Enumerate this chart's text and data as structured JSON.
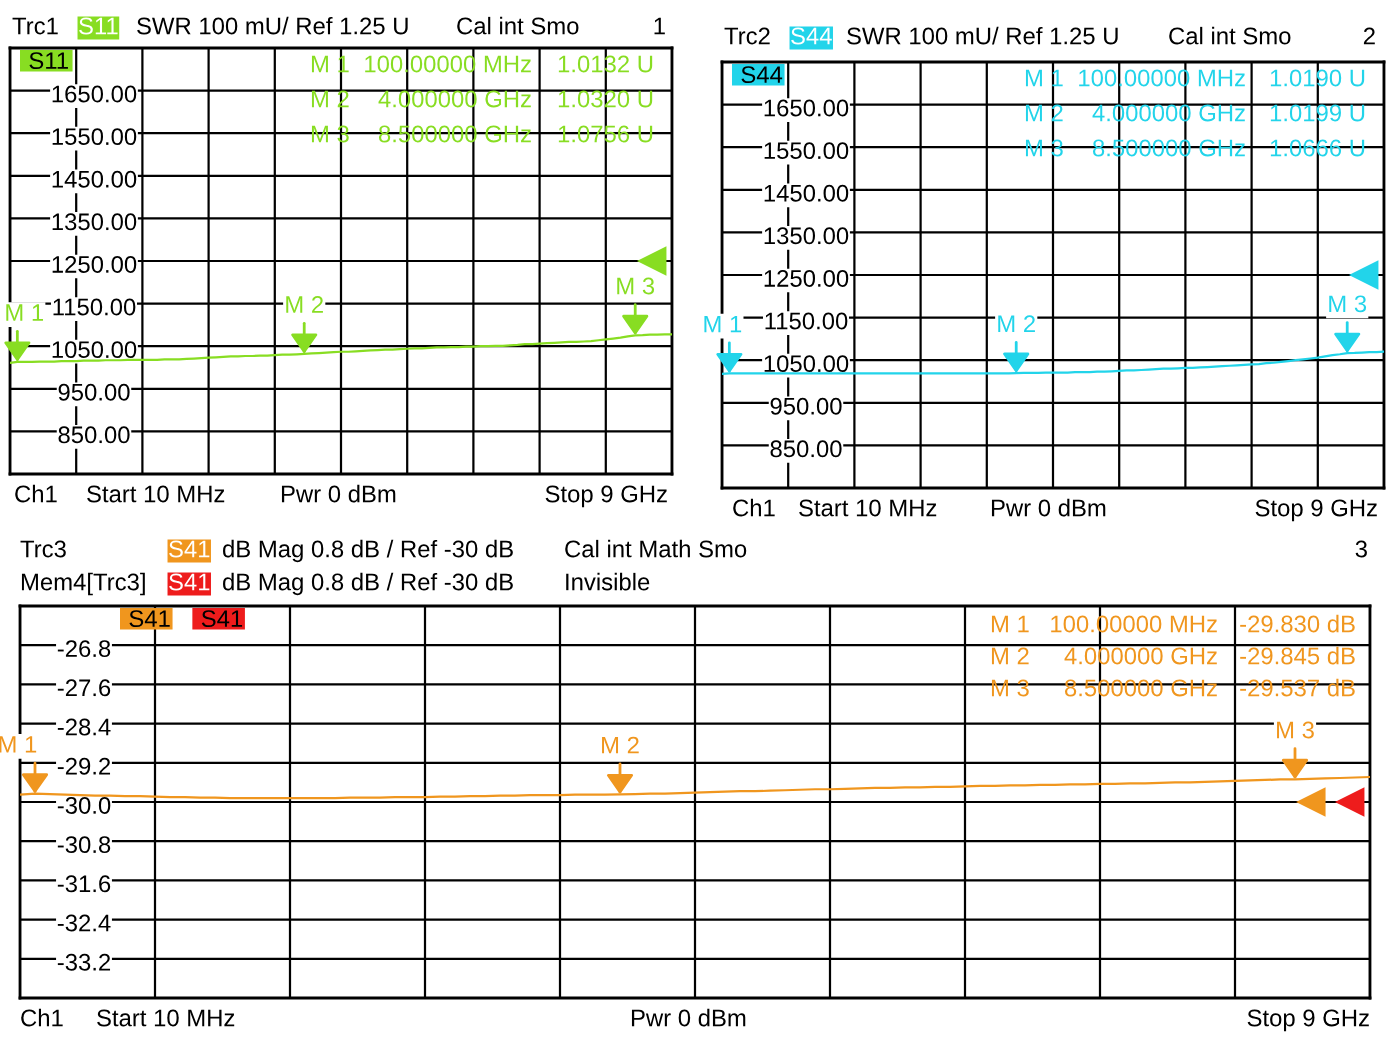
{
  "chart_data": [
    {
      "type": "line",
      "categories": [
        null,
        null,
        null,
        null,
        null,
        null,
        null,
        null,
        null,
        null,
        null,
        null,
        null,
        null,
        null,
        null,
        null,
        null,
        null,
        null,
        null,
        null,
        null,
        null,
        null,
        null,
        null,
        null,
        null,
        null,
        null,
        null,
        null,
        null,
        null,
        null,
        null,
        null,
        null,
        null,
        null,
        null,
        null,
        null,
        null,
        null,
        null,
        null,
        null,
        null,
        null,
        null,
        null,
        null,
        null,
        null,
        null,
        null,
        null,
        null,
        null,
        null,
        null,
        null,
        null,
        null,
        null,
        null,
        null,
        null,
        null,
        null,
        null,
        null,
        null,
        null,
        null,
        null,
        null,
        null,
        null,
        null,
        null,
        null,
        null,
        null,
        null,
        null,
        null,
        null,
        null
      ],
      "series": [
        {
          "name": "S11",
          "color": "#88dd22",
          "values": [
            1011,
            1013.2,
            1013,
            1013,
            1014,
            1014,
            1014,
            1015,
            1015,
            1015,
            1016,
            1016,
            1016,
            1017,
            1017,
            1017,
            1018,
            1018,
            1018,
            1018,
            1018,
            1019,
            1019,
            1019,
            1020,
            1021,
            1022,
            1023,
            1024,
            1025,
            1026,
            1026,
            1027,
            1027,
            1028,
            1028,
            1029,
            1030,
            1030,
            1031,
            1032.0,
            1033,
            1034,
            1035,
            1036,
            1037,
            1037,
            1038,
            1039,
            1040,
            1041,
            1042,
            1042,
            1043,
            1044,
            1045,
            1045,
            1046,
            1047,
            1047,
            1048,
            1048,
            1049,
            1049,
            1050,
            1050,
            1051,
            1051,
            1052,
            1053,
            1055,
            1055,
            1056,
            1057,
            1058,
            1059,
            1060,
            1060,
            1061,
            1062,
            1064,
            1066,
            1068,
            1070,
            1073,
            1075.6,
            1076,
            1077,
            1077,
            1078,
            1078
          ],
          "value_labels": [
            null,
            "M 1",
            null,
            null,
            null,
            null,
            null,
            null,
            null,
            null,
            null,
            null,
            null,
            null,
            null,
            null,
            null,
            null,
            null,
            null,
            null,
            null,
            null,
            null,
            null,
            null,
            null,
            null,
            null,
            null,
            null,
            null,
            null,
            null,
            null,
            null,
            null,
            null,
            null,
            null,
            "M 2",
            null,
            null,
            null,
            null,
            null,
            null,
            null,
            null,
            null,
            null,
            null,
            null,
            null,
            null,
            null,
            null,
            null,
            null,
            null,
            null,
            null,
            null,
            null,
            null,
            null,
            null,
            null,
            null,
            null,
            null,
            null,
            null,
            null,
            null,
            null,
            null,
            null,
            null,
            null,
            null,
            null,
            null,
            null,
            null,
            "M 3",
            null,
            null,
            null,
            null,
            null
          ]
        }
      ],
      "ylim": [
        750,
        1750
      ],
      "yticks": [
        {
          "value": 850,
          "label": "850.00"
        },
        {
          "value": 950,
          "label": "950.00"
        },
        {
          "value": 1050,
          "label": "1050.00"
        },
        {
          "value": 1150,
          "label": "1150.00"
        },
        {
          "value": 1250,
          "label": "1250.00"
        },
        {
          "value": 1350,
          "label": "1350.00"
        },
        {
          "value": 1450,
          "label": "1450.00"
        },
        {
          "value": 1550,
          "label": "1550.00"
        },
        {
          "value": 1650,
          "label": "1650.00"
        }
      ],
      "tick_labels": "y",
      "grid": true,
      "legend": "top left",
      "annotations": [
        "Trc1",
        "SWR 100 mU/ Ref 1.25 U",
        "Cal int Smo",
        "1",
        "M 1  100.00000 MHz  1.0132 U",
        "M 2  4.000000 GHz  1.0320 U",
        "M 3  8.500000 GHz  1.0756 U",
        "Ch1",
        "Start 10 MHz",
        "Pwr 0 dBm",
        "Stop 9 GHz"
      ]
    },
    {
      "type": "line",
      "categories": [
        null,
        null,
        null,
        null,
        null,
        null,
        null,
        null,
        null,
        null,
        null,
        null,
        null,
        null,
        null,
        null,
        null,
        null,
        null,
        null,
        null,
        null,
        null,
        null,
        null,
        null,
        null,
        null,
        null,
        null,
        null,
        null,
        null,
        null,
        null,
        null,
        null,
        null,
        null,
        null,
        null,
        null,
        null,
        null,
        null,
        null,
        null,
        null,
        null,
        null,
        null,
        null,
        null,
        null,
        null,
        null,
        null,
        null,
        null,
        null,
        null,
        null,
        null,
        null,
        null,
        null,
        null,
        null,
        null,
        null,
        null,
        null,
        null,
        null,
        null,
        null,
        null,
        null,
        null,
        null,
        null,
        null,
        null,
        null,
        null,
        null,
        null,
        null,
        null,
        null,
        null
      ],
      "series": [
        {
          "name": "S44",
          "color": "#22d4ea",
          "values": [
            1018,
            1019.0,
            1019,
            1019,
            1019,
            1019,
            1019,
            1019,
            1019,
            1019,
            1019,
            1019,
            1019,
            1019,
            1019,
            1019,
            1019,
            1019,
            1019,
            1019,
            1019,
            1019,
            1019,
            1019,
            1019,
            1019,
            1019,
            1019,
            1019,
            1019,
            1019,
            1019,
            1019,
            1019,
            1019,
            1019,
            1019,
            1019,
            1019,
            1019,
            1019.9,
            1020,
            1020,
            1020,
            1021,
            1021,
            1021,
            1021,
            1022,
            1022,
            1022,
            1023,
            1023,
            1024,
            1025,
            1026,
            1026,
            1027,
            1028,
            1029,
            1030,
            1030,
            1031,
            1032,
            1032,
            1033,
            1034,
            1035,
            1036,
            1037,
            1038,
            1039,
            1040,
            1041,
            1043,
            1044,
            1046,
            1048,
            1050,
            1052,
            1054,
            1056,
            1059,
            1062,
            1064,
            1066.6,
            1067,
            1068,
            1069,
            1069,
            1070
          ],
          "value_labels": [
            null,
            "M 1",
            null,
            null,
            null,
            null,
            null,
            null,
            null,
            null,
            null,
            null,
            null,
            null,
            null,
            null,
            null,
            null,
            null,
            null,
            null,
            null,
            null,
            null,
            null,
            null,
            null,
            null,
            null,
            null,
            null,
            null,
            null,
            null,
            null,
            null,
            null,
            null,
            null,
            null,
            "M 2",
            null,
            null,
            null,
            null,
            null,
            null,
            null,
            null,
            null,
            null,
            null,
            null,
            null,
            null,
            null,
            null,
            null,
            null,
            null,
            null,
            null,
            null,
            null,
            null,
            null,
            null,
            null,
            null,
            null,
            null,
            null,
            null,
            null,
            null,
            null,
            null,
            null,
            null,
            null,
            null,
            null,
            null,
            null,
            null,
            "M 3",
            null,
            null,
            null,
            null,
            null
          ]
        }
      ],
      "ylim": [
        750,
        1750
      ],
      "yticks": [
        {
          "value": 850,
          "label": "850.00"
        },
        {
          "value": 950,
          "label": "950.00"
        },
        {
          "value": 1050,
          "label": "1050.00"
        },
        {
          "value": 1150,
          "label": "1150.00"
        },
        {
          "value": 1250,
          "label": "1250.00"
        },
        {
          "value": 1350,
          "label": "1350.00"
        },
        {
          "value": 1450,
          "label": "1450.00"
        },
        {
          "value": 1550,
          "label": "1550.00"
        },
        {
          "value": 1650,
          "label": "1650.00"
        }
      ],
      "tick_labels": "y",
      "grid": true,
      "legend": "top left",
      "annotations": [
        "Trc2",
        "SWR 100 mU/ Ref 1.25 U",
        "Cal int Smo",
        "2",
        "M 1  100.00000 MHz  1.0190 U",
        "M 2  4.000000 GHz  1.0199 U",
        "M 3  8.500000 GHz  1.0666 U",
        "Ch1",
        "Start 10 MHz",
        "Pwr 0 dBm",
        "Stop 9 GHz"
      ]
    },
    {
      "type": "line",
      "categories": [
        null,
        null,
        null,
        null,
        null,
        null,
        null,
        null,
        null,
        null,
        null,
        null,
        null,
        null,
        null,
        null,
        null,
        null,
        null,
        null,
        null,
        null,
        null,
        null,
        null,
        null,
        null,
        null,
        null,
        null,
        null,
        null,
        null,
        null,
        null,
        null,
        null,
        null,
        null,
        null,
        null,
        null,
        null,
        null,
        null,
        null,
        null,
        null,
        null,
        null,
        null,
        null,
        null,
        null,
        null,
        null,
        null,
        null,
        null,
        null,
        null,
        null,
        null,
        null,
        null,
        null,
        null,
        null,
        null,
        null,
        null,
        null,
        null,
        null,
        null,
        null,
        null,
        null,
        null,
        null,
        null,
        null,
        null,
        null,
        null,
        null,
        null,
        null,
        null,
        null,
        null
      ],
      "series": [
        {
          "name": "S41",
          "color": "#f0961e",
          "values": [
            -29.85,
            -29.83,
            -29.84,
            -29.85,
            -29.86,
            -29.87,
            -29.87,
            -29.88,
            -29.88,
            -29.89,
            -29.9,
            -29.9,
            -29.91,
            -29.91,
            -29.92,
            -29.92,
            -29.92,
            -29.92,
            -29.92,
            -29.92,
            -29.92,
            -29.92,
            -29.91,
            -29.91,
            -29.91,
            -29.9,
            -29.9,
            -29.9,
            -29.89,
            -29.89,
            -29.88,
            -29.88,
            -29.87,
            -29.87,
            -29.86,
            -29.86,
            -29.86,
            -29.85,
            -29.85,
            -29.85,
            -29.845,
            -29.84,
            -29.83,
            -29.83,
            -29.82,
            -29.81,
            -29.8,
            -29.79,
            -29.78,
            -29.78,
            -29.77,
            -29.76,
            -29.75,
            -29.74,
            -29.74,
            -29.73,
            -29.72,
            -29.71,
            -29.71,
            -29.7,
            -29.7,
            -29.69,
            -29.69,
            -29.68,
            -29.67,
            -29.67,
            -29.66,
            -29.66,
            -29.65,
            -29.65,
            -29.64,
            -29.64,
            -29.63,
            -29.63,
            -29.62,
            -29.62,
            -29.61,
            -29.6,
            -29.6,
            -29.59,
            -29.58,
            -29.57,
            -29.56,
            -29.55,
            -29.54,
            -29.537,
            -29.53,
            -29.52,
            -29.51,
            -29.5,
            -29.49
          ],
          "value_labels": [
            null,
            "M 1",
            null,
            null,
            null,
            null,
            null,
            null,
            null,
            null,
            null,
            null,
            null,
            null,
            null,
            null,
            null,
            null,
            null,
            null,
            null,
            null,
            null,
            null,
            null,
            null,
            null,
            null,
            null,
            null,
            null,
            null,
            null,
            null,
            null,
            null,
            null,
            null,
            null,
            null,
            "M 2",
            null,
            null,
            null,
            null,
            null,
            null,
            null,
            null,
            null,
            null,
            null,
            null,
            null,
            null,
            null,
            null,
            null,
            null,
            null,
            null,
            null,
            null,
            null,
            null,
            null,
            null,
            null,
            null,
            null,
            null,
            null,
            null,
            null,
            null,
            null,
            null,
            null,
            null,
            null,
            null,
            null,
            null,
            null,
            null,
            "M 3",
            null,
            null,
            null,
            null,
            null
          ]
        },
        {
          "name": "S41",
          "color": "#ee1c1c",
          "values": [
            null,
            null,
            null,
            null,
            null,
            null,
            null,
            null,
            null,
            null,
            null,
            null,
            null,
            null,
            null,
            null,
            null,
            null,
            null,
            null,
            null,
            null,
            null,
            null,
            null,
            null,
            null,
            null,
            null,
            null,
            null,
            null,
            null,
            null,
            null,
            null,
            null,
            null,
            null,
            null,
            null,
            null,
            null,
            null,
            null,
            null,
            null,
            null,
            null,
            null,
            null,
            null,
            null,
            null,
            null,
            null,
            null,
            null,
            null,
            null,
            null,
            null,
            null,
            null,
            null,
            null,
            null,
            null,
            null,
            null,
            null,
            null,
            null,
            null,
            null,
            null,
            null,
            null,
            null,
            null,
            null,
            null,
            null,
            null,
            null,
            null,
            null,
            null,
            null,
            null,
            null
          ]
        }
      ],
      "ylim": [
        -34.0,
        -26.0
      ],
      "yticks": [
        -33.2,
        -32.4,
        -31.6,
        -30.8,
        {
          "value": -30.0,
          "label": "-30.0"
        },
        -29.2,
        -28.4,
        -27.6,
        -26.8
      ],
      "tick_labels": "y",
      "grid": true,
      "legend": "top left",
      "annotations": [
        "Trc3",
        "dB Mag 0.8 dB / Ref -30 dB",
        "Cal int Math Smo",
        "3",
        "Mem4[Trc3]",
        "dB Mag 0.8 dB / Ref -30 dB",
        "Invisible",
        "M 1  100.00000 MHz  -29.830 dB",
        "M 2  4.000000 GHz  -29.845 dB",
        "M 3  8.500000 GHz  -29.537 dB",
        "Ch1",
        "Start 10 MHz",
        "Pwr 0 dBm",
        "Stop 9 GHz"
      ]
    }
  ]
}
